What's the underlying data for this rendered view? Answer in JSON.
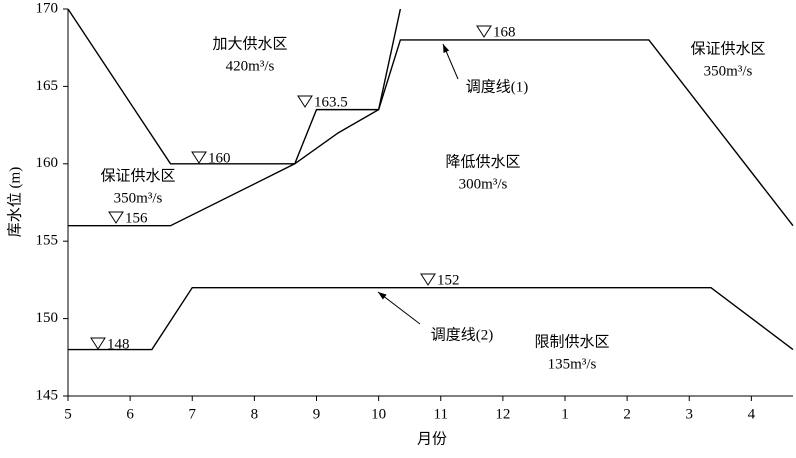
{
  "chart_data": {
    "type": "line",
    "x_label": "月份",
    "y_label": "库水位 (m)",
    "xlim": [
      5,
      16.67
    ],
    "ylim": [
      145,
      170
    ],
    "xticks": [
      5,
      6,
      7,
      8,
      9,
      10,
      11,
      12,
      {
        "value": 13,
        "label": "1"
      },
      {
        "value": 14,
        "label": "2"
      },
      {
        "value": 15,
        "label": "3"
      },
      {
        "value": 16,
        "label": "4"
      }
    ],
    "yticks": [
      145,
      150,
      155,
      160,
      165,
      170
    ],
    "series": [
      {
        "color": "#000000",
        "x": [
          5,
          6.65,
          8.65,
          9,
          10,
          10.35
        ],
        "values": [
          170,
          160,
          160,
          163.5,
          163.5,
          170
        ]
      },
      {
        "name": "调度线(1)",
        "color": "#000000",
        "x": [
          5,
          6.65,
          8.65,
          9.35,
          10,
          10.35,
          14.35,
          16.67
        ],
        "values": [
          156,
          156,
          160,
          162,
          163.5,
          168,
          168,
          156
        ]
      },
      {
        "name": "调度线(2)",
        "color": "#000000",
        "x": [
          5,
          6.35,
          7,
          15.35,
          16.67
        ],
        "values": [
          148,
          148,
          152,
          152,
          148
        ]
      }
    ],
    "regions": [
      {
        "name": "加大供水区",
        "flow": "420m³/s"
      },
      {
        "name": "保证供水区",
        "flow": "350m³/s"
      },
      {
        "name": "降低供水区",
        "flow": "300m³/s"
      },
      {
        "name": "保证供水区",
        "flow": "350m³/s"
      },
      {
        "name": "限制供水区",
        "flow": "135m³/s"
      }
    ],
    "level_marks": [
      "168",
      "160",
      "163.5",
      "156",
      "152",
      "148"
    ]
  }
}
